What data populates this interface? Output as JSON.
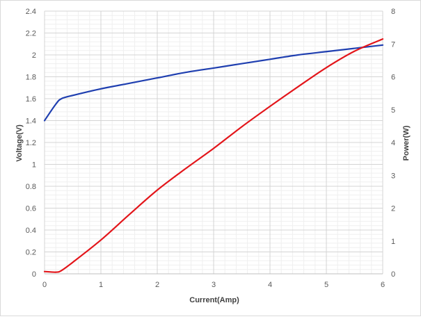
{
  "chart_data": {
    "type": "line",
    "xlabel": "Current(Amp)",
    "ylabel": "Voltage(V)",
    "y2label": "Power(W)",
    "xlim": [
      0,
      6
    ],
    "ylim": [
      0,
      2.4
    ],
    "y2lim": [
      0,
      8
    ],
    "xticks": [
      0,
      1,
      2,
      3,
      4,
      5,
      6
    ],
    "yticks": [
      "0",
      "0.2",
      "0.4",
      "0.6",
      "0.8",
      "1",
      "1.2",
      "1.4",
      "1.6",
      "1.8",
      "2",
      "2.2",
      "2.4"
    ],
    "y2ticks": [
      "0",
      "1",
      "2",
      "3",
      "4",
      "5",
      "6",
      "7",
      "8"
    ],
    "grid": true,
    "legend": "none",
    "series": [
      {
        "axis": "left",
        "color": "#1f3fb0",
        "x": [
          0,
          0.2,
          0.3,
          0.5,
          1,
          1.5,
          2,
          2.5,
          3,
          3.5,
          4,
          4.5,
          5,
          5.5,
          6
        ],
        "y": [
          1.4,
          1.55,
          1.6,
          1.63,
          1.69,
          1.74,
          1.79,
          1.84,
          1.88,
          1.92,
          1.96,
          2.0,
          2.03,
          2.06,
          2.09
        ]
      },
      {
        "axis": "right",
        "color": "#e3151a",
        "x": [
          0,
          0.2,
          0.3,
          0.5,
          1,
          1.5,
          2,
          2.5,
          3,
          3.5,
          4,
          4.5,
          5,
          5.5,
          6
        ],
        "y": [
          0.07,
          0.05,
          0.1,
          0.35,
          1.03,
          1.8,
          2.55,
          3.2,
          3.82,
          4.48,
          5.1,
          5.7,
          6.28,
          6.78,
          7.15
        ]
      }
    ]
  }
}
